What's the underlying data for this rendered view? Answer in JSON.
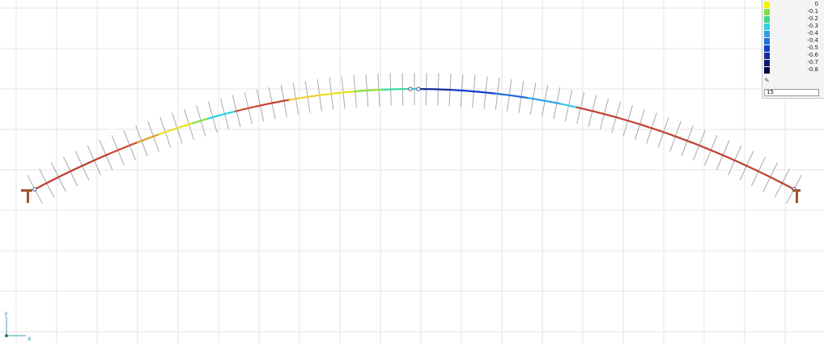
{
  "canvas": {
    "background": "#ffffff",
    "grid_color": "#e6e6e6"
  },
  "legend": {
    "entries": [
      {
        "label": "0",
        "color": "#f2f200"
      },
      {
        "label": "-0.1",
        "color": "#80e040"
      },
      {
        "label": "-0.2",
        "color": "#3ddc8a"
      },
      {
        "label": "-0.3",
        "color": "#30d0e0"
      },
      {
        "label": "-0.4",
        "color": "#2ea0e8"
      },
      {
        "label": "-0.4",
        "color": "#2070d8"
      },
      {
        "label": "-0.5",
        "color": "#1040c8"
      },
      {
        "label": "-0.6",
        "color": "#1a2a9a"
      },
      {
        "label": "-0.7",
        "color": "#101870"
      },
      {
        "label": "-0.8",
        "color": "#080840"
      }
    ],
    "edit_icon": "pencil-icon",
    "input_value": "15"
  },
  "axis": {
    "y_label": "y",
    "x_label": "x",
    "color": "#3aa0b0"
  },
  "structure": {
    "type": "arch",
    "support_color": "#a0522d",
    "member_base_color": "#c04030",
    "hatch_color": "#a8a8a8"
  }
}
